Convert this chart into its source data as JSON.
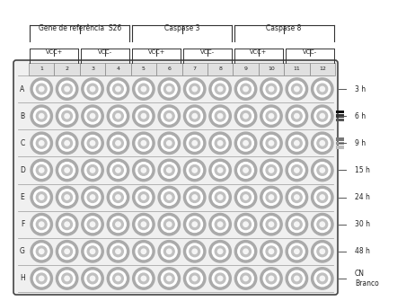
{
  "rows": [
    "A",
    "B",
    "C",
    "D",
    "E",
    "F",
    "G",
    "H"
  ],
  "cols": [
    1,
    2,
    3,
    4,
    5,
    6,
    7,
    8,
    9,
    10,
    11,
    12
  ],
  "time_labels": [
    "3 h",
    "6 h",
    "9 h",
    "15 h",
    "24 h",
    "30 h",
    "48 h",
    "CN\nBranco"
  ],
  "group_defs": [
    [
      "Gene de referência  S26",
      0,
      3
    ],
    [
      "Caspase 3",
      4,
      7
    ],
    [
      "Caspase 8",
      8,
      11
    ]
  ],
  "subgroup_defs": [
    [
      "VCC+",
      0,
      1
    ],
    [
      "VCC-",
      2,
      3
    ],
    [
      "VCC+",
      4,
      5
    ],
    [
      "VCC-",
      6,
      7
    ],
    [
      "VCC+",
      8,
      9
    ],
    [
      "VCC-",
      10,
      11
    ]
  ],
  "plate_face": "#f0f0f0",
  "plate_edge": "#444444",
  "well_ring1": "#aaaaaa",
  "well_ring2": "#ffffff",
  "well_ring3": "#c0c0c0",
  "well_ring4": "#e8e8e8",
  "well_center": "#f5f5f5",
  "sep_color": "#999999",
  "label_color": "#222222",
  "legend_colors": [
    "#111111",
    "#333333",
    "#555555",
    "#888888",
    "#aaaaaa",
    "#cccccc"
  ],
  "fig_bg": "#ffffff"
}
